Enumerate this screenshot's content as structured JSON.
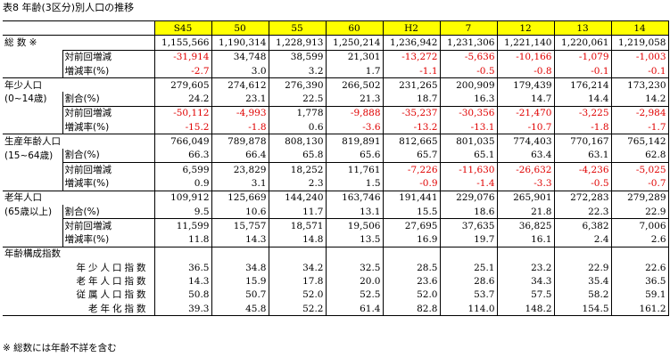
{
  "title": "表8 年齢(3区分)別人口の推移",
  "note": "※ 総数には年齢不詳を含む",
  "columns": [
    "S45",
    "50",
    "55",
    "60",
    "H2",
    "7",
    "12",
    "13",
    "14"
  ],
  "rows": [
    {
      "label": "総  数 ※",
      "sublabel": "",
      "values": [
        "1,155,566",
        "1,190,314",
        "1,228,913",
        "1,250,214",
        "1,236,942",
        "1,231,306",
        "1,221,140",
        "1,220,061",
        "1,219,058"
      ],
      "group_top": true
    },
    {
      "label": "",
      "sublabel": "対前回増減",
      "values": [
        "-31,914",
        "34,748",
        "38,599",
        "21,301",
        "-13,272",
        "-5,636",
        "-10,166",
        "-1,079",
        "-1,003"
      ],
      "sub_top": true
    },
    {
      "label": "",
      "sublabel": "増減率(%)",
      "values": [
        "-2.7",
        "3.0",
        "3.2",
        "1.7",
        "-1.1",
        "-0.5",
        "-0.8",
        "-0.1",
        "-0.1"
      ]
    },
    {
      "label": "年少人口",
      "sublabel": "",
      "values": [
        "279,605",
        "274,612",
        "276,390",
        "266,502",
        "231,265",
        "200,909",
        "179,439",
        "176,214",
        "173,230"
      ],
      "group_top": true
    },
    {
      "label": "(0~14歳)",
      "sublabel": "割合(%)",
      "values": [
        "24.2",
        "23.1",
        "22.5",
        "21.3",
        "18.7",
        "16.3",
        "14.7",
        "14.4",
        "14.2"
      ]
    },
    {
      "label": "",
      "sublabel": "対前回増減",
      "values": [
        "-50,112",
        "-4,993",
        "1,778",
        "-9,888",
        "-35,237",
        "-30,356",
        "-21,470",
        "-3,225",
        "-2,984"
      ],
      "sub_top": true
    },
    {
      "label": "",
      "sublabel": "増減率(%)",
      "values": [
        "-15.2",
        "-1.8",
        "0.6",
        "-3.6",
        "-13.2",
        "-13.1",
        "-10.7",
        "-1.8",
        "-1.7"
      ]
    },
    {
      "label": "生産年齢人口",
      "sublabel": "",
      "values": [
        "766,049",
        "789,878",
        "808,130",
        "819,891",
        "812,665",
        "801,035",
        "774,403",
        "770,167",
        "765,142"
      ],
      "group_top": true
    },
    {
      "label": "(15~64歳)",
      "sublabel": "割合(%)",
      "values": [
        "66.3",
        "66.4",
        "65.8",
        "65.6",
        "65.7",
        "65.1",
        "63.4",
        "63.1",
        "62.8"
      ]
    },
    {
      "label": "",
      "sublabel": "対前回増減",
      "values": [
        "6,599",
        "23,829",
        "18,252",
        "11,761",
        "-7,226",
        "-11,630",
        "-26,632",
        "-4,236",
        "-5,025"
      ],
      "sub_top": true
    },
    {
      "label": "",
      "sublabel": "増減率(%)",
      "values": [
        "0.9",
        "3.1",
        "2.3",
        "1.5",
        "-0.9",
        "-1.4",
        "-3.3",
        "-0.5",
        "-0.7"
      ]
    },
    {
      "label": "老年人口",
      "sublabel": "",
      "values": [
        "109,912",
        "125,669",
        "144,240",
        "163,746",
        "191,441",
        "229,076",
        "265,901",
        "272,283",
        "279,289"
      ],
      "group_top": true
    },
    {
      "label": "(65歳以上)",
      "sublabel": "割合(%)",
      "values": [
        "9.5",
        "10.6",
        "11.7",
        "13.1",
        "15.5",
        "18.6",
        "21.8",
        "22.3",
        "22.9"
      ]
    },
    {
      "label": "",
      "sublabel": "対前回増減",
      "values": [
        "11,599",
        "15,757",
        "18,571",
        "19,506",
        "27,695",
        "37,635",
        "36,825",
        "6,382",
        "7,006"
      ],
      "sub_top": true
    },
    {
      "label": "",
      "sublabel": "増減率(%)",
      "values": [
        "11.8",
        "14.3",
        "14.8",
        "13.5",
        "16.9",
        "19.7",
        "16.1",
        "2.4",
        "2.6"
      ]
    }
  ],
  "index_section": {
    "heading": "年齢構成指数",
    "rows": [
      {
        "label": "年少人口指数",
        "values": [
          "36.5",
          "34.8",
          "34.2",
          "32.5",
          "28.5",
          "25.1",
          "23.2",
          "22.9",
          "22.6"
        ]
      },
      {
        "label": "老年人口指数",
        "values": [
          "14.3",
          "15.9",
          "17.8",
          "20.0",
          "23.6",
          "28.6",
          "34.3",
          "35.4",
          "36.5"
        ]
      },
      {
        "label": "従属人口指数",
        "values": [
          "50.8",
          "50.7",
          "52.0",
          "52.5",
          "52.0",
          "53.7",
          "57.5",
          "58.2",
          "59.1"
        ]
      },
      {
        "label": "老年化指数",
        "values": [
          "39.3",
          "45.8",
          "52.2",
          "61.4",
          "82.8",
          "114.0",
          "148.2",
          "154.5",
          "161.2"
        ]
      }
    ]
  },
  "colors": {
    "header_bg": "#ffff00",
    "negative": "#e00000"
  }
}
